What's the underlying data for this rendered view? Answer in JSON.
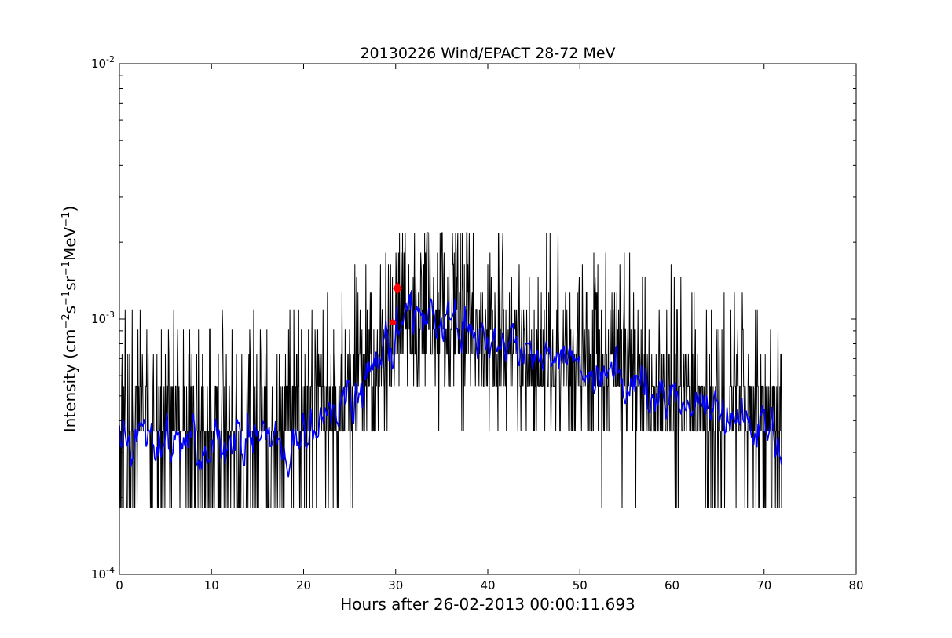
{
  "chart_data": {
    "type": "line",
    "title": "20130226 Wind/EPACT 28-72 MeV",
    "xlabel": "Hours after 26-02-2013 00:00:11.693",
    "ylabel": "Intensity (cm⁻²s⁻¹sr⁻¹MeV⁻¹)",
    "ylabel_parts": [
      "Intensity (cm",
      "−2",
      "s",
      "−1",
      "sr",
      "−1",
      "MeV",
      "−1",
      ")"
    ],
    "xlim": [
      0,
      80
    ],
    "ylim": [
      0.0001,
      0.01
    ],
    "yscale": "log",
    "grid": false,
    "x_ticks": [
      {
        "value": 0,
        "label": "0"
      },
      {
        "value": 10,
        "label": "10"
      },
      {
        "value": 20,
        "label": "20"
      },
      {
        "value": 30,
        "label": "30"
      },
      {
        "value": 40,
        "label": "40"
      },
      {
        "value": 50,
        "label": "50"
      },
      {
        "value": 60,
        "label": "60"
      },
      {
        "value": 70,
        "label": "70"
      },
      {
        "value": 80,
        "label": "80"
      }
    ],
    "y_ticks": [
      {
        "value": 0.0001,
        "base": "10",
        "exp": "-4"
      },
      {
        "value": 0.001,
        "base": "10",
        "exp": "-3"
      },
      {
        "value": 0.01,
        "base": "10",
        "exp": "-2"
      }
    ],
    "series": [
      {
        "color": "#000000",
        "style": "raw",
        "x_range": [
          0,
          71.9
        ],
        "levels": [
          0.000182,
          0.000364,
          0.000546,
          0.000728,
          0.00091,
          0.00109,
          0.00127,
          0.00146,
          0.00164,
          0.00182,
          0.00218
        ],
        "envelope": {
          "x": [
            0,
            5,
            10,
            15,
            20,
            24,
            26,
            28,
            29,
            30,
            31,
            32,
            33,
            34,
            35,
            36,
            37,
            38,
            40,
            42,
            45,
            48,
            50,
            52,
            55,
            58,
            60,
            62,
            65,
            68,
            70,
            71.9
          ],
          "y": [
            0.00035,
            0.00033,
            0.00032,
            0.00033,
            0.00036,
            0.00045,
            0.00055,
            0.00068,
            0.0008,
            0.00095,
            0.001,
            0.00098,
            0.00102,
            0.00104,
            0.001,
            0.00095,
            0.0009,
            0.00085,
            0.0008,
            0.00075,
            0.0007,
            0.00068,
            0.00065,
            0.00062,
            0.00058,
            0.00052,
            0.00048,
            0.00045,
            0.00042,
            0.0004,
            0.00037,
            0.0003
          ]
        }
      },
      {
        "color": "#0000ff",
        "style": "smoothed",
        "x_range": [
          0,
          71.9
        ]
      }
    ],
    "markers": [
      {
        "x": 29.7,
        "y": 0.00097,
        "color": "#ff0000",
        "shape": "circle"
      },
      {
        "x": 30.2,
        "y": 0.00132,
        "color": "#ff0000",
        "shape": "diamond"
      }
    ]
  }
}
